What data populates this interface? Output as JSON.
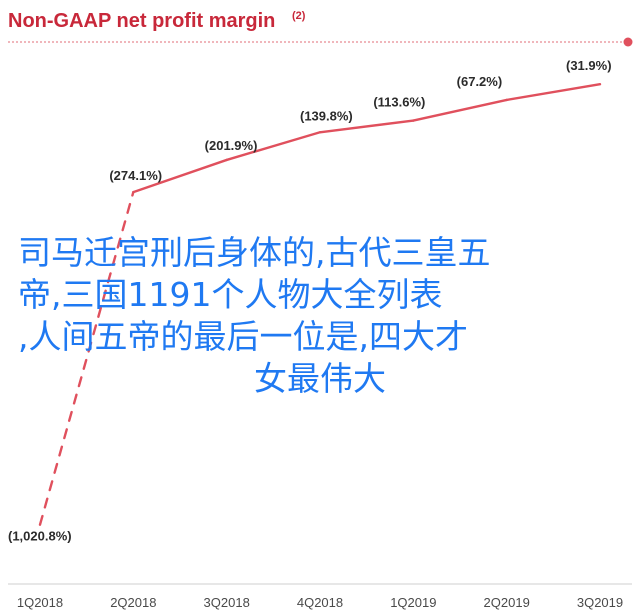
{
  "chart_data": {
    "type": "line",
    "title": "Non-GAAP net profit margin",
    "title_footnote": "(2)",
    "categories": [
      "1Q2018",
      "2Q2018",
      "3Q2018",
      "4Q2018",
      "1Q2019",
      "2Q2019",
      "3Q2019"
    ],
    "series": [
      {
        "values": [
          -1020.8,
          -274.1,
          -201.9,
          -139.8,
          -113.6,
          -67.2,
          -31.9
        ],
        "labels": [
          "(1,020.8%)",
          "(274.1%)",
          "(201.9%)",
          "(139.8%)",
          "(113.6%)",
          "(67.2%)",
          "(31.9%)"
        ],
        "line_style": [
          "dashed",
          "solid",
          "solid",
          "solid",
          "solid",
          "solid"
        ],
        "color": "#e0505d"
      }
    ],
    "value_format": "negative percent in parentheses",
    "ylim": [
      -1100,
      0
    ],
    "grid": false,
    "legend": "none"
  },
  "colors": {
    "accent": "#c8283a",
    "line": "#e0505d",
    "overlay_text": "#1f79f2"
  },
  "overlay_text": {
    "line1": "司马迁宫刑后身体的,古代三皇五",
    "line2": "帝,三国1191个人物大全列表",
    "line3": ",人间五帝的最后一位是,四大才",
    "line4": "女最伟大"
  }
}
